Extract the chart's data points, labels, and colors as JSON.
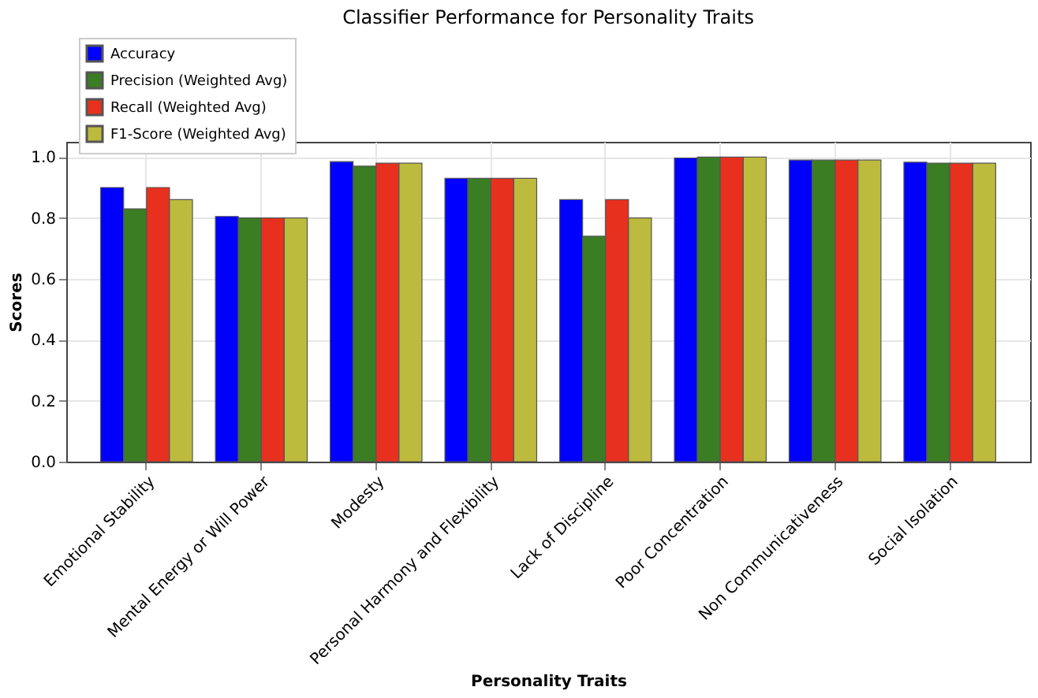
{
  "chart_data": {
    "type": "bar",
    "title": "Classifier Performance for Personality Traits",
    "xlabel": "Personality Traits",
    "ylabel": "Scores",
    "categories": [
      "Emotional Stability",
      "Mental Energy or Will Power",
      "Modesty",
      "Personal Harmony and Flexibility",
      "Lack of Discipline",
      "Poor Concentration",
      "Non Communicativeness",
      "Social Isolation"
    ],
    "series": [
      {
        "name": "Accuracy",
        "color": "#0000ff",
        "values": [
          0.9,
          0.805,
          0.985,
          0.93,
          0.86,
          0.997,
          0.99,
          0.983
        ]
      },
      {
        "name": "Precision (Weighted Avg)",
        "color": "#3a7d22",
        "values": [
          0.83,
          0.8,
          0.97,
          0.93,
          0.74,
          1.0,
          0.99,
          0.98
        ]
      },
      {
        "name": "Recall (Weighted Avg)",
        "color": "#e8301e",
        "values": [
          0.9,
          0.8,
          0.98,
          0.93,
          0.86,
          1.0,
          0.99,
          0.98
        ]
      },
      {
        "name": "F1-Score (Weighted Avg)",
        "color": "#bdbb3d",
        "values": [
          0.86,
          0.8,
          0.98,
          0.93,
          0.8,
          1.0,
          0.99,
          0.98
        ]
      }
    ],
    "ylim": [
      0,
      1.05
    ],
    "yticks": [
      {
        "value": 0,
        "label": "0.0"
      },
      0.2,
      0.4,
      0.6,
      0.8,
      {
        "value": 1,
        "label": "1.0"
      }
    ],
    "grid": true,
    "legend": "top left"
  }
}
